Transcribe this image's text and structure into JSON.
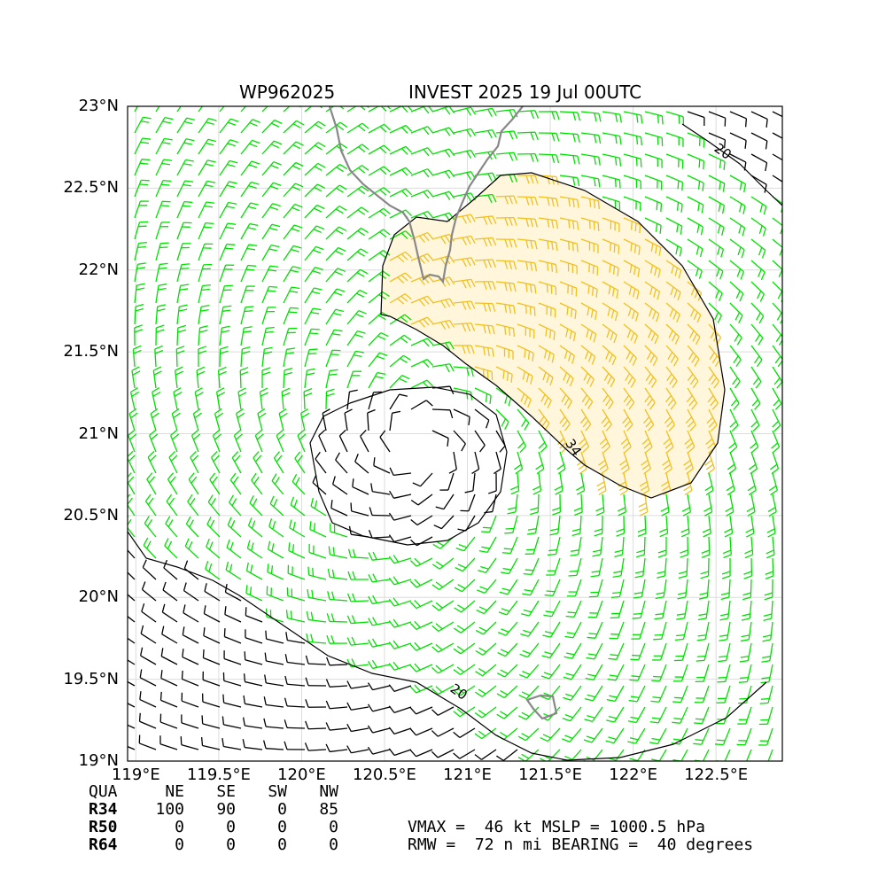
{
  "title": {
    "left": "WP962025",
    "right": "INVEST 2025 19 Jul 00UTC"
  },
  "map": {
    "lon_range": [
      118.95,
      122.9
    ],
    "lat_range": [
      19.0,
      23.0
    ],
    "yticks": [
      "23°N",
      "22.5°N",
      "22°N",
      "21.5°N",
      "21°N",
      "20.5°N",
      "20°N",
      "19.5°N",
      "19°N"
    ],
    "xticks": [
      "119°E",
      "119.5°E",
      "120°E",
      "120.5°E",
      "121°E",
      "121.5°E",
      "122°E",
      "122.5°E"
    ],
    "contour_labels": [
      "20",
      "34",
      "20"
    ],
    "center": {
      "lon": 120.7,
      "lat": 20.93
    },
    "colors": {
      "below_34kt": "#00e000",
      "34_to_50kt": "#f0c020",
      "low_wind": "#000000",
      "coastline": "#888888"
    }
  },
  "table": {
    "header": [
      "QUA",
      "NE",
      "SE",
      "SW",
      "NW"
    ],
    "rows": [
      {
        "label": "R34",
        "values": [
          "100",
          "90",
          "0",
          "85"
        ]
      },
      {
        "label": "R50",
        "values": [
          "0",
          "0",
          "0",
          "0"
        ]
      },
      {
        "label": "R64",
        "values": [
          "0",
          "0",
          "0",
          "0"
        ]
      }
    ]
  },
  "stats": {
    "line1": "VMAX =  46 kt MSLP = 1000.5 hPa",
    "line2": "RMW =  72 n mi BEARING =  40 degrees"
  }
}
